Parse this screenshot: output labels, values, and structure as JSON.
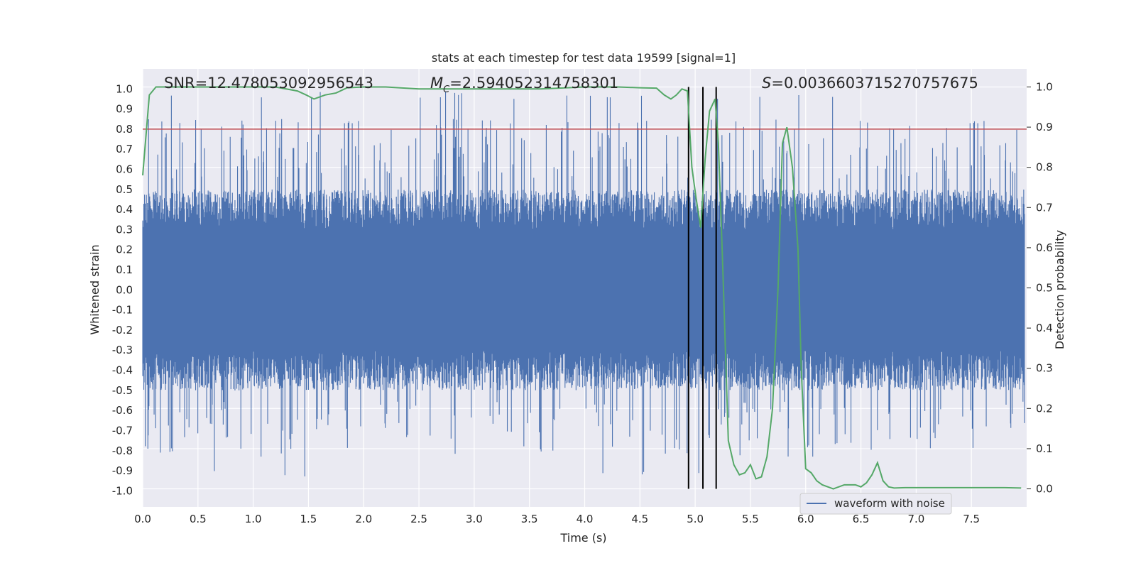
{
  "chart_data": {
    "type": "line",
    "title": "stats at each timestep for test data 19599 [signal=1]",
    "xlabel": "Time (s)",
    "ylabel_left": "Whitened strain",
    "ylabel_right": "Detection probability",
    "xlim": [
      0.0,
      8.0
    ],
    "ylim_left": [
      -1.08,
      1.1
    ],
    "ylim_right": [
      -0.045,
      1.045
    ],
    "x_ticks": [
      "0.0",
      "0.5",
      "1.0",
      "1.5",
      "2.0",
      "2.5",
      "3.0",
      "3.5",
      "4.0",
      "4.5",
      "5.0",
      "5.5",
      "6.0",
      "6.5",
      "7.0",
      "7.5"
    ],
    "y_ticks_left": [
      "1.0",
      "0.9",
      "0.8",
      "0.7",
      "0.6",
      "0.5",
      "0.4",
      "0.3",
      "0.2",
      "0.1",
      "0.0",
      "-0.1",
      "-0.2",
      "-0.3",
      "-0.4",
      "-0.5",
      "-0.6",
      "-0.7",
      "-0.8",
      "-0.9",
      "-1.0"
    ],
    "y_ticks_right": [
      "1.0",
      "0.9",
      "0.8",
      "0.7",
      "0.6",
      "0.5",
      "0.4",
      "0.3",
      "0.2",
      "0.1",
      "0.0"
    ],
    "grid": true,
    "legend": {
      "position": "lower-right",
      "entries": [
        "waveform with noise"
      ]
    },
    "annotations": {
      "snr": "SNR=12.478053092956543",
      "mc_symbol": "M",
      "mc_sub": "C",
      "mc_value": "=2.594052314758301",
      "s_symbol": "S",
      "s_value": "=0.0036603715270757675"
    },
    "threshold": {
      "y": 0.8,
      "color": "#c44e52"
    },
    "vertical_lines": {
      "x": [
        4.94,
        5.07,
        5.19
      ],
      "color": "#000000"
    },
    "series": [
      {
        "name": "waveform with noise",
        "axis": "left",
        "color": "#4c72b0",
        "description_envelope": {
          "dense_band": [
            -0.4,
            0.4
          ],
          "peak_max": 1.0,
          "trough_min": -0.93
        }
      },
      {
        "axis": "right",
        "color": "#55a868",
        "x": [
          0.0,
          0.06,
          0.12,
          0.2,
          0.4,
          0.7,
          1.0,
          1.2,
          1.4,
          1.48,
          1.55,
          1.65,
          1.75,
          1.85,
          2.0,
          2.2,
          2.5,
          2.8,
          3.2,
          3.6,
          4.0,
          4.3,
          4.5,
          4.65,
          4.72,
          4.78,
          4.83,
          4.88,
          4.93,
          4.97,
          5.01,
          5.05,
          5.09,
          5.13,
          5.18,
          5.21,
          5.25,
          5.3,
          5.35,
          5.4,
          5.45,
          5.5,
          5.55,
          5.6,
          5.65,
          5.7,
          5.75,
          5.79,
          5.83,
          5.88,
          5.93,
          5.96,
          6.0,
          6.05,
          6.1,
          6.15,
          6.2,
          6.25,
          6.3,
          6.35,
          6.4,
          6.45,
          6.5,
          6.55,
          6.6,
          6.65,
          6.7,
          6.75,
          6.8,
          6.9,
          7.0,
          7.2,
          7.4,
          7.6,
          7.8,
          7.95
        ],
        "y": [
          0.78,
          0.98,
          1.0,
          1.0,
          1.0,
          1.0,
          1.0,
          1.0,
          0.99,
          0.98,
          0.97,
          0.98,
          0.985,
          0.998,
          1.0,
          1.0,
          0.995,
          0.995,
          0.995,
          0.995,
          1.0,
          1.0,
          0.998,
          0.997,
          0.98,
          0.97,
          0.98,
          0.995,
          0.99,
          0.8,
          0.72,
          0.65,
          0.82,
          0.94,
          0.97,
          0.86,
          0.55,
          0.12,
          0.06,
          0.035,
          0.04,
          0.06,
          0.025,
          0.03,
          0.08,
          0.2,
          0.5,
          0.86,
          0.9,
          0.8,
          0.6,
          0.3,
          0.05,
          0.04,
          0.02,
          0.01,
          0.005,
          0.0,
          0.005,
          0.01,
          0.01,
          0.01,
          0.005,
          0.015,
          0.035,
          0.065,
          0.02,
          0.005,
          0.002,
          0.003,
          0.003,
          0.003,
          0.003,
          0.003,
          0.003,
          0.002
        ]
      }
    ]
  }
}
